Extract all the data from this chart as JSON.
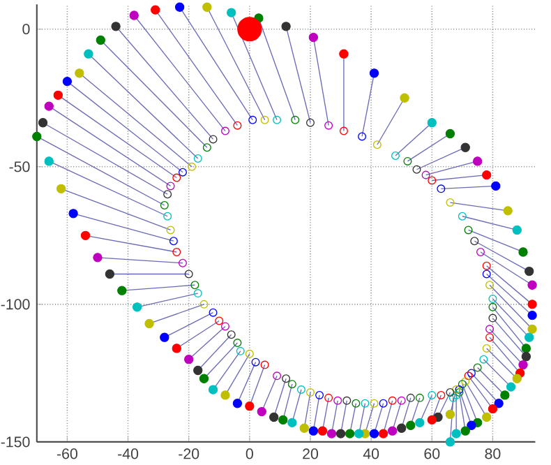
{
  "chart_data": {
    "type": "scatter",
    "xlim": [
      -70,
      94
    ],
    "ylim": [
      -150,
      9
    ],
    "xticks": [
      -60,
      -40,
      -20,
      0,
      20,
      40,
      60,
      80
    ],
    "yticks": [
      -150,
      -100,
      -50,
      0
    ],
    "grid": true,
    "line_style": "solid",
    "series": [
      {
        "type": "line",
        "color": "#6a6ab8",
        "x": [
          -70,
          -28
        ],
        "values": [
          -39,
          -64
        ]
      },
      {
        "type": "line",
        "color": "#6a6ab8",
        "x": [
          -68,
          -27
        ],
        "values": [
          -34,
          -60
        ]
      },
      {
        "type": "line",
        "color": "#6a6ab8",
        "x": [
          -66,
          -26
        ],
        "values": [
          -28,
          -57
        ]
      },
      {
        "type": "line",
        "color": "#6a6ab8",
        "x": [
          -63,
          -24
        ],
        "values": [
          -24,
          -54
        ]
      },
      {
        "type": "line",
        "color": "#6a6ab8",
        "x": [
          -60,
          -22
        ],
        "values": [
          -19,
          -52
        ]
      },
      {
        "type": "line",
        "color": "#6a6ab8",
        "x": [
          -56,
          -19
        ],
        "values": [
          -16,
          -50
        ]
      },
      {
        "type": "line",
        "color": "#6a6ab8",
        "x": [
          -53,
          -17
        ],
        "values": [
          -9,
          -47
        ]
      },
      {
        "type": "line",
        "color": "#6a6ab8",
        "x": [
          -49,
          -14
        ],
        "values": [
          -4,
          -43
        ]
      },
      {
        "type": "line",
        "color": "#6a6ab8",
        "x": [
          -44,
          -12
        ],
        "values": [
          1,
          -40
        ]
      },
      {
        "type": "line",
        "color": "#6a6ab8",
        "x": [
          -38,
          -8
        ],
        "values": [
          5,
          -37
        ]
      },
      {
        "type": "line",
        "color": "#6a6ab8",
        "x": [
          -31,
          -4
        ],
        "values": [
          7,
          -35
        ]
      },
      {
        "type": "line",
        "color": "#6a6ab8",
        "x": [
          -23,
          1
        ],
        "values": [
          8,
          -33
        ]
      },
      {
        "type": "line",
        "color": "#6a6ab8",
        "x": [
          -14,
          5
        ],
        "values": [
          8,
          -33
        ]
      },
      {
        "type": "line",
        "color": "#6a6ab8",
        "x": [
          -6,
          9
        ],
        "values": [
          6,
          -33
        ]
      },
      {
        "type": "line",
        "color": "#6a6ab8",
        "x": [
          3,
          15
        ],
        "values": [
          4,
          -33
        ]
      },
      {
        "type": "line",
        "color": "#6a6ab8",
        "x": [
          12,
          20
        ],
        "values": [
          1,
          -34
        ]
      },
      {
        "type": "line",
        "color": "#6a6ab8",
        "x": [
          21,
          26
        ],
        "values": [
          -3,
          -35
        ]
      },
      {
        "type": "line",
        "color": "#6a6ab8",
        "x": [
          31,
          31
        ],
        "values": [
          -9,
          -37
        ]
      },
      {
        "type": "line",
        "color": "#6a6ab8",
        "x": [
          41,
          37
        ],
        "values": [
          -16,
          -39
        ]
      },
      {
        "type": "line",
        "color": "#6a6ab8",
        "x": [
          51,
          42
        ],
        "values": [
          -25,
          -42
        ]
      },
      {
        "type": "line",
        "color": "#6a6ab8",
        "x": [
          60,
          48
        ],
        "values": [
          -34,
          -46
        ]
      },
      {
        "type": "line",
        "color": "#6a6ab8",
        "x": [
          66,
          52
        ],
        "values": [
          -38,
          -48
        ]
      },
      {
        "type": "line",
        "color": "#6a6ab8",
        "x": [
          71,
          55
        ],
        "values": [
          -43,
          -51
        ]
      },
      {
        "type": "line",
        "color": "#6a6ab8",
        "x": [
          75,
          58
        ],
        "values": [
          -48,
          -53
        ]
      },
      {
        "type": "line",
        "color": "#6a6ab8",
        "x": [
          78,
          60
        ],
        "values": [
          -53,
          -55
        ]
      },
      {
        "type": "line",
        "color": "#6a6ab8",
        "x": [
          81,
          63
        ],
        "values": [
          -57,
          -58
        ]
      },
      {
        "type": "line",
        "color": "#6a6ab8",
        "x": [
          85,
          66
        ],
        "values": [
          -66,
          -63
        ]
      },
      {
        "type": "line",
        "color": "#6a6ab8",
        "x": [
          88,
          70
        ],
        "values": [
          -73,
          -68
        ]
      },
      {
        "type": "line",
        "color": "#6a6ab8",
        "x": [
          90,
          72
        ],
        "values": [
          -81,
          -73
        ]
      },
      {
        "type": "line",
        "color": "#6a6ab8",
        "x": [
          92,
          74
        ],
        "values": [
          -88,
          -77
        ]
      },
      {
        "type": "line",
        "color": "#6a6ab8",
        "x": [
          93,
          76
        ],
        "values": [
          -93,
          -81
        ]
      },
      {
        "type": "line",
        "color": "#6a6ab8",
        "x": [
          93,
          78
        ],
        "values": [
          -100,
          -86
        ]
      },
      {
        "type": "line",
        "color": "#6a6ab8",
        "x": [
          93,
          78
        ],
        "values": [
          -104,
          -89
        ]
      },
      {
        "type": "line",
        "color": "#6a6ab8",
        "x": [
          93,
          79
        ],
        "values": [
          -109,
          -93
        ]
      },
      {
        "type": "line",
        "color": "#6a6ab8",
        "x": [
          92,
          80
        ],
        "values": [
          -112,
          -98
        ]
      },
      {
        "type": "line",
        "color": "#6a6ab8",
        "x": [
          91,
          80
        ],
        "values": [
          -116,
          -101
        ]
      },
      {
        "type": "line",
        "color": "#6a6ab8",
        "x": [
          91,
          80
        ],
        "values": [
          -119,
          -105
        ]
      },
      {
        "type": "line",
        "color": "#6a6ab8",
        "x": [
          90,
          79
        ],
        "values": [
          -122,
          -109
        ]
      },
      {
        "type": "line",
        "color": "#6a6ab8",
        "x": [
          89,
          79
        ],
        "values": [
          -125,
          -112
        ]
      },
      {
        "type": "line",
        "color": "#6a6ab8",
        "x": [
          88,
          78
        ],
        "values": [
          -127,
          -116
        ]
      },
      {
        "type": "line",
        "color": "#6a6ab8",
        "x": [
          86,
          77
        ],
        "values": [
          -130,
          -120
        ]
      },
      {
        "type": "line",
        "color": "#6a6ab8",
        "x": [
          84,
          75
        ],
        "values": [
          -133,
          -123
        ]
      },
      {
        "type": "line",
        "color": "#6a6ab8",
        "x": [
          82,
          73
        ],
        "values": [
          -136,
          -125
        ]
      },
      {
        "type": "line",
        "color": "#6a6ab8",
        "x": [
          80,
          72
        ],
        "values": [
          -138,
          -126
        ]
      },
      {
        "type": "line",
        "color": "#6a6ab8",
        "x": [
          78,
          71
        ],
        "values": [
          -141,
          -128
        ]
      },
      {
        "type": "line",
        "color": "#6a6ab8",
        "x": [
          75,
          70
        ],
        "values": [
          -143,
          -129
        ]
      },
      {
        "type": "line",
        "color": "#6a6ab8",
        "x": [
          73,
          69
        ],
        "values": [
          -144,
          -131
        ]
      },
      {
        "type": "line",
        "color": "#6a6ab8",
        "x": [
          71,
          69
        ],
        "values": [
          -146,
          -132
        ]
      },
      {
        "type": "line",
        "color": "#6a6ab8",
        "x": [
          68,
          68
        ],
        "values": [
          -147,
          -133
        ]
      },
      {
        "type": "line",
        "color": "#6a6ab8",
        "x": [
          66,
          67
        ],
        "values": [
          -150,
          -134
        ]
      },
      {
        "type": "line",
        "color": "#6a6ab8",
        "x": [
          66,
          68
        ],
        "values": [
          -140,
          -131
        ]
      },
      {
        "type": "line",
        "color": "#6a6ab8",
        "x": [
          62,
          66
        ],
        "values": [
          -141,
          -132
        ]
      },
      {
        "type": "line",
        "color": "#6a6ab8",
        "x": [
          60,
          63
        ],
        "values": [
          -142,
          -133
        ]
      },
      {
        "type": "line",
        "color": "#6a6ab8",
        "x": [
          56,
          60
        ],
        "values": [
          -143,
          -133
        ]
      },
      {
        "type": "line",
        "color": "#6a6ab8",
        "x": [
          53,
          56
        ],
        "values": [
          -144,
          -134
        ]
      },
      {
        "type": "line",
        "color": "#6a6ab8",
        "x": [
          50,
          53
        ],
        "values": [
          -145,
          -134
        ]
      },
      {
        "type": "line",
        "color": "#6a6ab8",
        "x": [
          47,
          50
        ],
        "values": [
          -146,
          -135
        ]
      },
      {
        "type": "line",
        "color": "#6a6ab8",
        "x": [
          44,
          47
        ],
        "values": [
          -147,
          -135
        ]
      },
      {
        "type": "line",
        "color": "#6a6ab8",
        "x": [
          41,
          44
        ],
        "values": [
          -147,
          -136
        ]
      },
      {
        "type": "line",
        "color": "#6a6ab8",
        "x": [
          38,
          41
        ],
        "values": [
          -147,
          -136
        ]
      },
      {
        "type": "line",
        "color": "#6a6ab8",
        "x": [
          36,
          38
        ],
        "values": [
          -147,
          -136
        ]
      },
      {
        "type": "line",
        "color": "#6a6ab8",
        "x": [
          33,
          35
        ],
        "values": [
          -147,
          -136
        ]
      },
      {
        "type": "line",
        "color": "#6a6ab8",
        "x": [
          30,
          32
        ],
        "values": [
          -147,
          -135
        ]
      },
      {
        "type": "line",
        "color": "#6a6ab8",
        "x": [
          27,
          29
        ],
        "values": [
          -147,
          -135
        ]
      },
      {
        "type": "line",
        "color": "#6a6ab8",
        "x": [
          24,
          26
        ],
        "values": [
          -146,
          -134
        ]
      },
      {
        "type": "line",
        "color": "#6a6ab8",
        "x": [
          21,
          23
        ],
        "values": [
          -146,
          -133
        ]
      },
      {
        "type": "line",
        "color": "#6a6ab8",
        "x": [
          18,
          20
        ],
        "values": [
          -145,
          -132
        ]
      },
      {
        "type": "line",
        "color": "#6a6ab8",
        "x": [
          14,
          17
        ],
        "values": [
          -143,
          -131
        ]
      },
      {
        "type": "line",
        "color": "#6a6ab8",
        "x": [
          11,
          14
        ],
        "values": [
          -142,
          -129
        ]
      },
      {
        "type": "line",
        "color": "#6a6ab8",
        "x": [
          8,
          12
        ],
        "values": [
          -141,
          -127
        ]
      },
      {
        "type": "line",
        "color": "#6a6ab8",
        "x": [
          4,
          9
        ],
        "values": [
          -139,
          -126
        ]
      },
      {
        "type": "line",
        "color": "#6a6ab8",
        "x": [
          0,
          5
        ],
        "values": [
          -137,
          -122
        ]
      },
      {
        "type": "line",
        "color": "#6a6ab8",
        "x": [
          -4,
          2
        ],
        "values": [
          -136,
          -121
        ]
      },
      {
        "type": "line",
        "color": "#6a6ab8",
        "x": [
          -8,
          0
        ],
        "values": [
          -133,
          -118
        ]
      },
      {
        "type": "line",
        "color": "#6a6ab8",
        "x": [
          -12,
          -3
        ],
        "values": [
          -131,
          -117
        ]
      },
      {
        "type": "line",
        "color": "#6a6ab8",
        "x": [
          -15,
          -4
        ],
        "values": [
          -127,
          -114
        ]
      },
      {
        "type": "line",
        "color": "#6a6ab8",
        "x": [
          -17,
          -6
        ],
        "values": [
          -124,
          -111
        ]
      },
      {
        "type": "line",
        "color": "#6a6ab8",
        "x": [
          -20,
          -8
        ],
        "values": [
          -120,
          -108
        ]
      },
      {
        "type": "line",
        "color": "#6a6ab8",
        "x": [
          -24,
          -10
        ],
        "values": [
          -116,
          -106
        ]
      },
      {
        "type": "line",
        "color": "#6a6ab8",
        "x": [
          -28,
          -12
        ],
        "values": [
          -112,
          -103
        ]
      },
      {
        "type": "line",
        "color": "#6a6ab8",
        "x": [
          -33,
          -15
        ],
        "values": [
          -107,
          -100
        ]
      },
      {
        "type": "line",
        "color": "#6a6ab8",
        "x": [
          -37,
          -17
        ],
        "values": [
          -101,
          -96
        ]
      },
      {
        "type": "line",
        "color": "#6a6ab8",
        "x": [
          -42,
          -18
        ],
        "values": [
          -95,
          -93
        ]
      },
      {
        "type": "line",
        "color": "#6a6ab8",
        "x": [
          -46,
          -20
        ],
        "values": [
          -89,
          -89
        ]
      },
      {
        "type": "line",
        "color": "#6a6ab8",
        "x": [
          -50,
          -22
        ],
        "values": [
          -83,
          -85
        ]
      },
      {
        "type": "line",
        "color": "#6a6ab8",
        "x": [
          -54,
          -24
        ],
        "values": [
          -75,
          -81
        ]
      },
      {
        "type": "line",
        "color": "#6a6ab8",
        "x": [
          -58,
          -25
        ],
        "values": [
          -67,
          -77
        ]
      },
      {
        "type": "line",
        "color": "#6a6ab8",
        "x": [
          -62,
          -26
        ],
        "values": [
          -58,
          -73
        ]
      },
      {
        "type": "line",
        "color": "#6a6ab8",
        "x": [
          -66,
          -27
        ],
        "values": [
          -48,
          -68
        ]
      },
      {
        "marker": "circle",
        "x": [
          -28,
          -27,
          -26,
          -24,
          -22,
          -19,
          -17,
          -14,
          -12,
          -8,
          -4,
          1,
          5,
          9,
          15,
          20,
          26,
          31,
          37,
          42,
          48,
          52,
          55,
          58,
          60,
          63,
          66,
          70,
          72,
          74,
          76,
          78,
          78,
          79,
          80,
          80,
          80,
          79,
          79,
          78,
          77,
          75,
          73,
          72,
          71,
          70,
          69,
          69,
          68,
          67,
          68,
          66,
          63,
          60,
          56,
          53,
          50,
          47,
          44,
          41,
          38,
          35,
          32,
          29,
          26,
          23,
          20,
          17,
          14,
          12,
          9,
          5,
          2,
          0,
          -3,
          -4,
          -6,
          -8,
          -10,
          -12,
          -15,
          -17,
          -18,
          -20,
          -22,
          -24,
          -25,
          -26,
          -27
        ],
        "values": [
          -64,
          -60,
          -57,
          -54,
          -52,
          -50,
          -47,
          -43,
          -40,
          -37,
          -35,
          -33,
          -33,
          -33,
          -33,
          -34,
          -35,
          -37,
          -39,
          -42,
          -46,
          -48,
          -51,
          -53,
          -55,
          -58,
          -63,
          -68,
          -73,
          -77,
          -81,
          -86,
          -89,
          -93,
          -98,
          -101,
          -105,
          -109,
          -112,
          -116,
          -120,
          -123,
          -125,
          -126,
          -128,
          -129,
          -131,
          -132,
          -133,
          -134,
          -131,
          -132,
          -133,
          -133,
          -134,
          -134,
          -135,
          -135,
          -136,
          -136,
          -136,
          -136,
          -135,
          -135,
          -134,
          -133,
          -132,
          -131,
          -129,
          -127,
          -126,
          -122,
          -121,
          -118,
          -117,
          -114,
          -111,
          -108,
          -106,
          -103,
          -100,
          -96,
          -93,
          -89,
          -85,
          -81,
          -77,
          -73,
          -68
        ],
        "colors": [
          "#008000",
          "#333333",
          "#bf00bf",
          "#ff0000",
          "#0000ff",
          "#bfbf00",
          "#00bfbf",
          "#008000",
          "#333333",
          "#bf00bf",
          "#ff0000",
          "#0000ff",
          "#bfbf00",
          "#00bfbf",
          "#008000",
          "#333333",
          "#bf00bf",
          "#ff0000",
          "#0000ff",
          "#bfbf00",
          "#00bfbf",
          "#008000",
          "#333333",
          "#bf00bf",
          "#ff0000",
          "#0000ff",
          "#bfbf00",
          "#00bfbf",
          "#008000",
          "#333333",
          "#bf00bf",
          "#ff0000",
          "#0000ff",
          "#bfbf00",
          "#00bfbf",
          "#008000",
          "#333333",
          "#bf00bf",
          "#ff0000",
          "#bfbf00",
          "#00bfbf",
          "#008000",
          "#0000ff",
          "#ff0000",
          "#bfbf00",
          "#008000",
          "#0000ff",
          "#008000",
          "#00bfbf",
          "#00bfbf",
          "#bfbf00",
          "#333333",
          "#ff0000",
          "#00bfbf",
          "#008000",
          "#333333",
          "#bf00bf",
          "#ff0000",
          "#0000ff",
          "#bfbf00",
          "#00bfbf",
          "#008000",
          "#333333",
          "#bf00bf",
          "#ff0000",
          "#0000ff",
          "#bfbf00",
          "#00bfbf",
          "#008000",
          "#333333",
          "#bf00bf",
          "#ff0000",
          "#0000ff",
          "#bfbf00",
          "#00bfbf",
          "#008000",
          "#333333",
          "#bf00bf",
          "#ff0000",
          "#0000ff",
          "#bfbf00",
          "#00bfbf",
          "#008000",
          "#333333",
          "#bf00bf",
          "#ff0000",
          "#0000ff",
          "#bfbf00",
          "#00bfbf"
        ]
      },
      {
        "marker": "circle",
        "x": [
          -70,
          -68,
          -66,
          -63,
          -60,
          -56,
          -53,
          -49,
          -44,
          -38,
          -31,
          -23,
          -14,
          -6,
          3,
          12,
          21,
          31,
          41,
          51,
          60,
          66,
          71,
          75,
          78,
          81,
          85,
          88,
          90,
          92,
          93,
          93,
          93,
          93,
          92,
          91,
          91,
          90,
          89,
          88,
          86,
          84,
          82,
          80,
          78,
          75,
          73,
          71,
          68,
          66,
          66,
          62,
          60,
          56,
          53,
          50,
          47,
          44,
          41,
          38,
          36,
          33,
          30,
          27,
          24,
          21,
          18,
          14,
          11,
          8,
          4,
          0,
          -4,
          -8,
          -12,
          -15,
          -17,
          -20,
          -24,
          -28,
          -33,
          -37,
          -42,
          -46,
          -50,
          -54,
          -58,
          -62,
          -66
        ],
        "values": [
          -39,
          -34,
          -28,
          -24,
          -19,
          -16,
          -9,
          -4,
          1,
          5,
          7,
          8,
          8,
          6,
          4,
          1,
          -3,
          -9,
          -16,
          -25,
          -34,
          -38,
          -43,
          -48,
          -53,
          -57,
          -66,
          -73,
          -81,
          -88,
          -93,
          -100,
          -104,
          -109,
          -112,
          -116,
          -119,
          -122,
          -125,
          -127,
          -130,
          -133,
          -136,
          -138,
          -141,
          -143,
          -144,
          -146,
          -147,
          -150,
          -140,
          -141,
          -142,
          -143,
          -144,
          -145,
          -146,
          -147,
          -147,
          -147,
          -147,
          -147,
          -147,
          -147,
          -146,
          -146,
          -145,
          -143,
          -142,
          -141,
          -139,
          -137,
          -136,
          -133,
          -131,
          -127,
          -124,
          -120,
          -116,
          -112,
          -107,
          -101,
          -95,
          -89,
          -83,
          -75,
          -67,
          -58,
          -48
        ],
        "colors": [
          "#008000",
          "#333333",
          "#bf00bf",
          "#ff0000",
          "#0000ff",
          "#bfbf00",
          "#00bfbf",
          "#008000",
          "#333333",
          "#bf00bf",
          "#ff0000",
          "#0000ff",
          "#bfbf00",
          "#00bfbf",
          "#008000",
          "#333333",
          "#bf00bf",
          "#ff0000",
          "#0000ff",
          "#bfbf00",
          "#00bfbf",
          "#008000",
          "#333333",
          "#bf00bf",
          "#ff0000",
          "#0000ff",
          "#bfbf00",
          "#00bfbf",
          "#008000",
          "#333333",
          "#bf00bf",
          "#ff0000",
          "#0000ff",
          "#bfbf00",
          "#00bfbf",
          "#008000",
          "#333333",
          "#bf00bf",
          "#ff0000",
          "#bfbf00",
          "#00bfbf",
          "#008000",
          "#0000ff",
          "#ff0000",
          "#bfbf00",
          "#008000",
          "#0000ff",
          "#008000",
          "#00bfbf",
          "#00bfbf",
          "#bfbf00",
          "#333333",
          "#ff0000",
          "#00bfbf",
          "#008000",
          "#333333",
          "#bf00bf",
          "#ff0000",
          "#0000ff",
          "#bfbf00",
          "#00bfbf",
          "#008000",
          "#333333",
          "#bf00bf",
          "#ff0000",
          "#0000ff",
          "#bfbf00",
          "#00bfbf",
          "#008000",
          "#333333",
          "#bf00bf",
          "#ff0000",
          "#0000ff",
          "#bfbf00",
          "#00bfbf",
          "#008000",
          "#333333",
          "#bf00bf",
          "#ff0000",
          "#0000ff",
          "#bfbf00",
          "#00bfbf",
          "#008000",
          "#333333",
          "#bf00bf",
          "#ff0000",
          "#0000ff",
          "#bfbf00",
          "#00bfbf"
        ]
      },
      {
        "type": "bubble",
        "color": "#ff0000",
        "x": [
          0
        ],
        "values": [
          0
        ],
        "sizes": [
          1
        ]
      }
    ]
  }
}
